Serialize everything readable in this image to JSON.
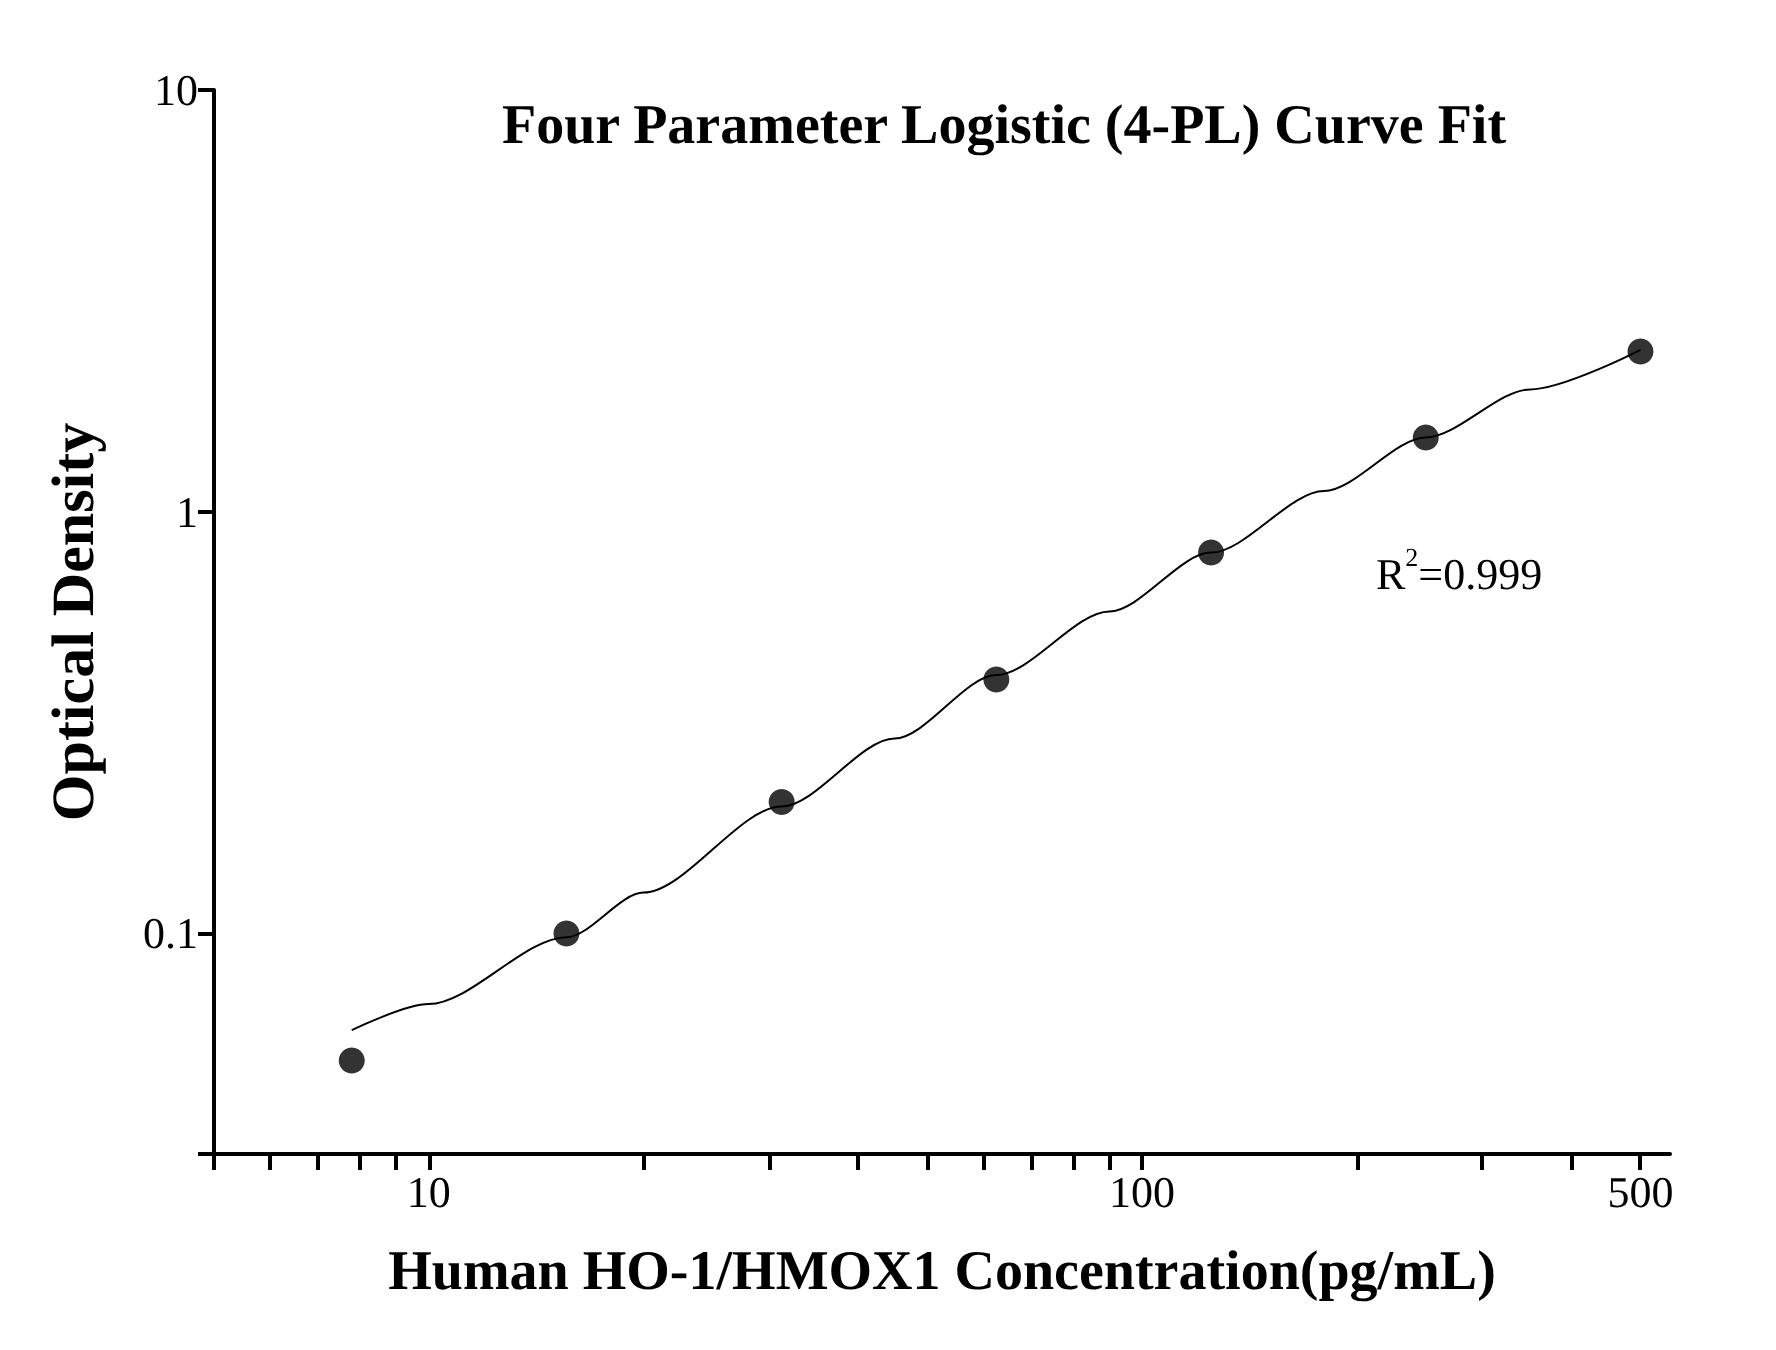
{
  "chart_data": {
    "type": "scatter",
    "title": "Four Parameter Logistic (4-PL) Curve Fit",
    "xlabel": "Human HO-1/HMOX1 Concentration(pg/mL)",
    "ylabel": "Optical Density",
    "annotations": [
      "R$^{2}$=0.999"
    ],
    "log": "xy",
    "grid": false,
    "marker": "circle",
    "xlim": [
      5,
      550
    ],
    "ylim": [
      0.03,
      10
    ],
    "xticks": [
      {
        "value": 5,
        "label": null
      },
      {
        "value": 6,
        "label": null
      },
      {
        "value": 7,
        "label": null
      },
      {
        "value": 8,
        "label": null
      },
      {
        "value": 9,
        "label": null
      },
      10,
      {
        "value": 20,
        "label": null
      },
      {
        "value": 30,
        "label": null
      },
      {
        "value": 40,
        "label": null
      },
      {
        "value": 50,
        "label": null
      },
      {
        "value": 60,
        "label": null
      },
      {
        "value": 70,
        "label": null
      },
      {
        "value": 80,
        "label": null
      },
      {
        "value": 90,
        "label": null
      },
      100,
      {
        "value": 200,
        "label": null
      },
      {
        "value": 300,
        "label": null
      },
      {
        "value": 400,
        "label": null
      },
      500
    ],
    "yticks": [
      {
        "value": 0.03,
        "label": null
      },
      0.1,
      1,
      10
    ],
    "series": [
      {
        "color": "#000000",
        "x": [
          7.8,
          15.6,
          31.25,
          62.5,
          125,
          250,
          500
        ],
        "values": [
          0.05,
          0.1,
          0.205,
          0.4,
          0.8,
          1.5,
          2.4
        ]
      },
      {
        "type": "line",
        "color": "#000000",
        "marker": "none",
        "x": [
          7.8,
          10,
          15.6,
          20,
          31.25,
          45,
          62.5,
          90,
          125,
          180,
          250,
          350,
          500
        ],
        "values": [
          0.059,
          0.068,
          0.098,
          0.125,
          0.2,
          0.29,
          0.41,
          0.58,
          0.8,
          1.12,
          1.5,
          1.95,
          2.42
        ]
      }
    ]
  }
}
